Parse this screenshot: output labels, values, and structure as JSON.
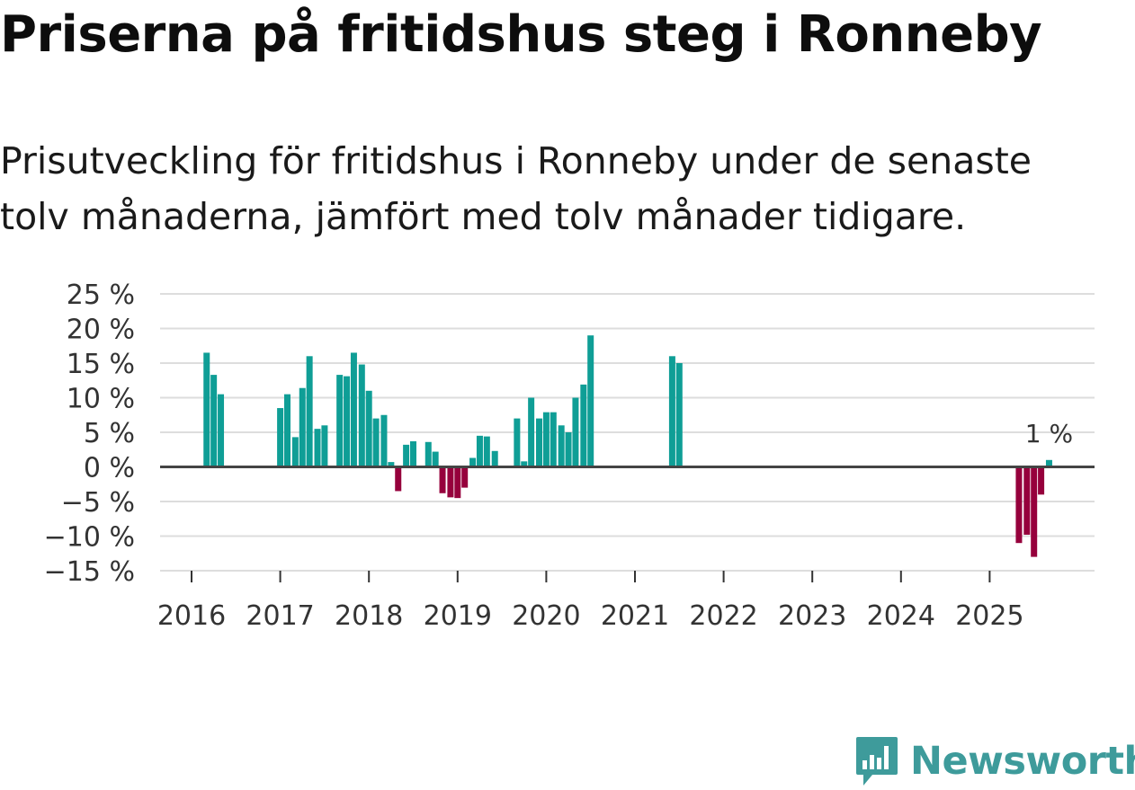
{
  "title": "Priserna på fritidshus steg i Ronneby",
  "subtitle_lines": [
    "Prisutveckling för fritidshus i Ronneby under de senaste",
    "tolv månaderna, jämfört med tolv månader tidigare."
  ],
  "brand": "Newsworthy",
  "colors": {
    "positive": "#0f9e96",
    "negative": "#96003c",
    "grid": "#dddddd",
    "zero_line": "#444444",
    "axis_text": "#333333",
    "brand": "#3e9b9b"
  },
  "chart_data": {
    "type": "bar",
    "title": "Priserna på fritidshus steg i Ronneby",
    "ylabel": "",
    "xlabel": "",
    "ylim": [
      -15,
      25
    ],
    "yticks": [
      25,
      20,
      15,
      10,
      5,
      0,
      -5,
      -10,
      -15
    ],
    "ytick_labels": [
      "25 %",
      "20 %",
      "15 %",
      "10 %",
      "5 %",
      "0 %",
      "−5 %",
      "−10 %",
      "−15 %"
    ],
    "xticks": [
      2016,
      2017,
      2018,
      2019,
      2020,
      2021,
      2022,
      2023,
      2024,
      2025
    ],
    "x_unit": "month (fractional year)",
    "points": [
      {
        "x": 2016.17,
        "y": 16.5
      },
      {
        "x": 2016.25,
        "y": 13.3
      },
      {
        "x": 2016.33,
        "y": 10.5
      },
      {
        "x": 2017.0,
        "y": 8.5
      },
      {
        "x": 2017.08,
        "y": 10.5
      },
      {
        "x": 2017.17,
        "y": 4.3
      },
      {
        "x": 2017.25,
        "y": 11.4
      },
      {
        "x": 2017.33,
        "y": 16.0
      },
      {
        "x": 2017.42,
        "y": 5.5
      },
      {
        "x": 2017.5,
        "y": 6.0
      },
      {
        "x": 2017.67,
        "y": 13.3
      },
      {
        "x": 2017.75,
        "y": 13.1
      },
      {
        "x": 2017.83,
        "y": 16.5
      },
      {
        "x": 2017.92,
        "y": 14.8
      },
      {
        "x": 2018.0,
        "y": 11.0
      },
      {
        "x": 2018.08,
        "y": 7.0
      },
      {
        "x": 2018.17,
        "y": 7.5
      },
      {
        "x": 2018.25,
        "y": 0.7
      },
      {
        "x": 2018.33,
        "y": -3.5
      },
      {
        "x": 2018.42,
        "y": 3.2
      },
      {
        "x": 2018.5,
        "y": 3.7
      },
      {
        "x": 2018.67,
        "y": 3.6
      },
      {
        "x": 2018.75,
        "y": 2.2
      },
      {
        "x": 2018.83,
        "y": -3.8
      },
      {
        "x": 2018.92,
        "y": -4.4
      },
      {
        "x": 2019.0,
        "y": -4.5
      },
      {
        "x": 2019.08,
        "y": -3.0
      },
      {
        "x": 2019.17,
        "y": 1.3
      },
      {
        "x": 2019.25,
        "y": 4.5
      },
      {
        "x": 2019.33,
        "y": 4.4
      },
      {
        "x": 2019.42,
        "y": 2.3
      },
      {
        "x": 2019.67,
        "y": 7.0
      },
      {
        "x": 2019.75,
        "y": 0.8
      },
      {
        "x": 2019.83,
        "y": 10.0
      },
      {
        "x": 2019.92,
        "y": 7.0
      },
      {
        "x": 2020.0,
        "y": 7.9
      },
      {
        "x": 2020.08,
        "y": 7.9
      },
      {
        "x": 2020.17,
        "y": 6.0
      },
      {
        "x": 2020.25,
        "y": 5.0
      },
      {
        "x": 2020.33,
        "y": 10.0
      },
      {
        "x": 2020.42,
        "y": 11.9
      },
      {
        "x": 2020.5,
        "y": 19.0
      },
      {
        "x": 2021.42,
        "y": 16.0
      },
      {
        "x": 2021.5,
        "y": 15.0
      },
      {
        "x": 2025.33,
        "y": -11.0
      },
      {
        "x": 2025.42,
        "y": -9.8
      },
      {
        "x": 2025.5,
        "y": -13.0
      },
      {
        "x": 2025.58,
        "y": -4.0
      },
      {
        "x": 2025.67,
        "y": 1.0
      }
    ],
    "annotation": {
      "x": 2025.67,
      "y": 1.0,
      "text": "1 %"
    }
  }
}
